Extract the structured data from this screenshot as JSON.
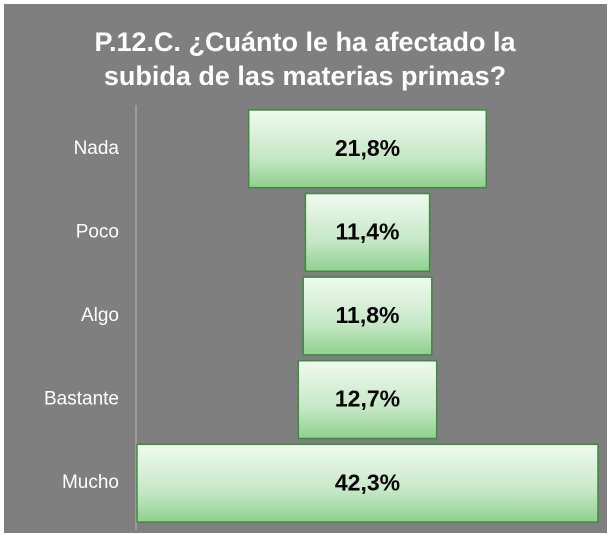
{
  "chart_data": {
    "type": "funnel",
    "title": [
      "P.12.C. ¿Cuánto le ha afectado la",
      "subida de las materias primas?"
    ],
    "categories": [
      "Nada",
      "Poco",
      "Algo",
      "Bastante",
      "Mucho"
    ],
    "values": [
      21.8,
      11.4,
      11.8,
      12.7,
      42.3
    ],
    "value_labels": [
      "21,8%",
      "11,4%",
      "11,8%",
      "12,7%",
      "42,3%"
    ],
    "color": "#5cb85c"
  }
}
